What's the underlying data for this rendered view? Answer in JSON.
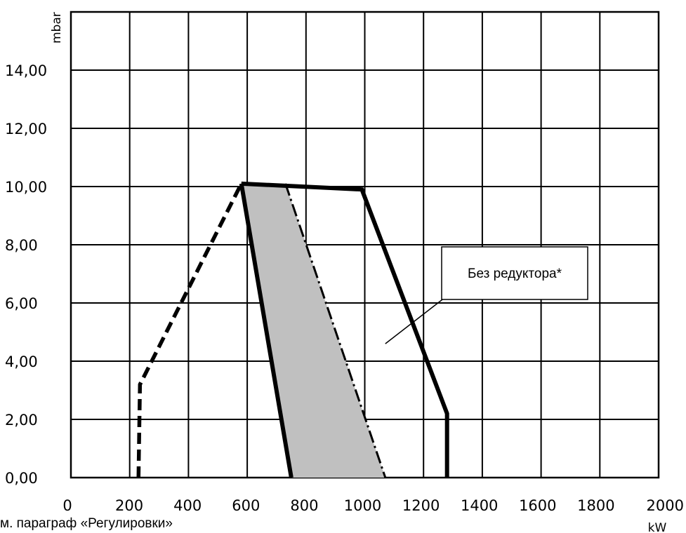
{
  "chart_data": {
    "type": "area",
    "x_unit": "kW",
    "y_unit": "mbar",
    "xlim": [
      0,
      2000
    ],
    "ylim": [
      0,
      16
    ],
    "x_ticks": [
      "0",
      "200",
      "400",
      "600",
      "800",
      "1000",
      "1200",
      "1400",
      "1600",
      "1800",
      "2000"
    ],
    "y_ticks": [
      "0,00",
      "2,00",
      "4,00",
      "6,00",
      "8,00",
      "10,00",
      "12,00",
      "14,00"
    ],
    "grid": true,
    "shaded_region": [
      [
        580,
        10.1
      ],
      [
        750,
        0
      ],
      [
        1070,
        0
      ],
      [
        730,
        10.1
      ]
    ],
    "series": [
      {
        "style": "solid",
        "points": [
          [
            580,
            10.1
          ],
          [
            750,
            0
          ]
        ]
      },
      {
        "style": "solid",
        "points": [
          [
            580,
            10.1
          ],
          [
            990,
            9.9
          ],
          [
            1280,
            2.2
          ],
          [
            1280,
            0
          ]
        ]
      },
      {
        "style": "dashed",
        "points": [
          [
            230,
            0
          ],
          [
            235,
            3.2
          ],
          [
            580,
            10.1
          ]
        ]
      },
      {
        "style": "dashdot",
        "points": [
          [
            730,
            10.1
          ],
          [
            1070,
            0
          ]
        ]
      }
    ],
    "annotation": {
      "text": "Без редуктора*",
      "points_to": [
        1070,
        4.6
      ]
    },
    "footnote": "м. параграф «Регулировки»"
  }
}
